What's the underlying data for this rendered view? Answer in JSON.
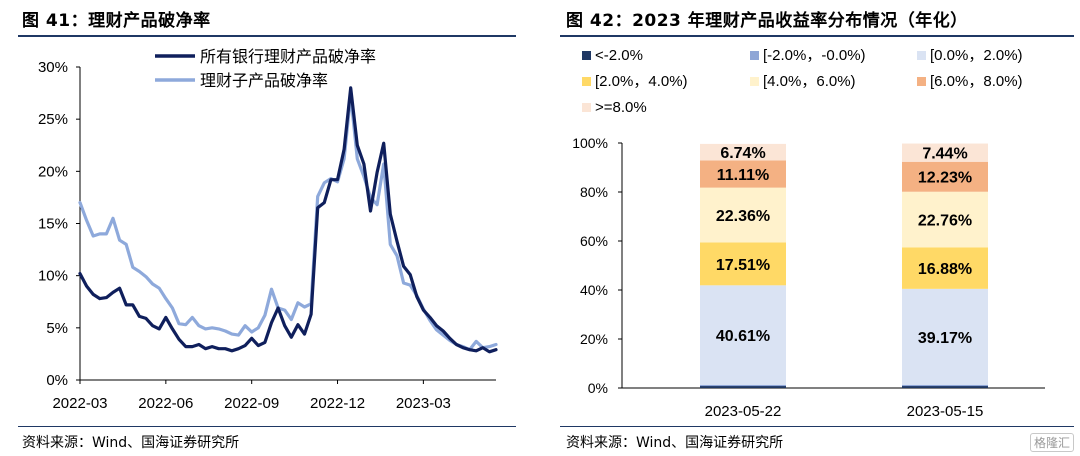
{
  "left_panel": {
    "title": "图 41：理财产品破净率",
    "source": "资料来源：Wind、国海证券研究所"
  },
  "right_panel": {
    "title": "图 42：2023 年理财产品收益率分布情况（年化）",
    "source": "资料来源：Wind、国海证券研究所"
  },
  "watermark": "格隆汇",
  "colors": {
    "dark_navy": "#0f1f5c",
    "light_blue_line": "#8ea9db",
    "neg_gt2": "#1f3864",
    "neg_0_2": "#8fa6d6",
    "b0_2": "#dae3f3",
    "b2_4": "#ffd966",
    "b4_6": "#fff2cc",
    "b6_8": "#f4b183",
    "ge8": "#fbe5d6"
  },
  "chart_data": [
    {
      "type": "line",
      "xlabel": "",
      "ylabel": "",
      "ylim": [
        0,
        30
      ],
      "yticks": [
        "0%",
        "5%",
        "10%",
        "15%",
        "20%",
        "25%",
        "30%"
      ],
      "xticks": [
        "2022-03",
        "2022-06",
        "2022-09",
        "2022-12",
        "2023-03"
      ],
      "grid": false,
      "legend_position": "top-left",
      "series": [
        {
          "name": "所有银行理财产品破净率",
          "color": "#0f1f5c",
          "values": [
            10.2,
            9.0,
            8.2,
            7.8,
            7.9,
            8.4,
            8.8,
            7.2,
            7.2,
            6.1,
            5.9,
            5.2,
            4.9,
            6.0,
            4.9,
            3.9,
            3.2,
            3.2,
            3.4,
            3.0,
            3.2,
            3.0,
            3.0,
            2.8,
            3.0,
            3.3,
            4.0,
            3.3,
            3.6,
            5.5,
            6.9,
            5.2,
            4.1,
            5.3,
            4.4,
            6.3,
            16.5,
            17.0,
            19.2,
            19.2,
            22.1,
            28.0,
            22.5,
            20.7,
            16.2,
            19.9,
            22.7,
            15.9,
            13.3,
            10.9,
            10.1,
            8.0,
            6.7,
            6.0,
            5.2,
            4.7,
            4.0,
            3.4,
            3.1,
            2.9,
            2.8,
            3.1,
            2.7,
            2.9
          ]
        },
        {
          "name": "理财子产品破净率",
          "color": "#8ea9db",
          "values": [
            17.0,
            15.3,
            13.8,
            14.0,
            14.0,
            15.5,
            13.4,
            13.0,
            10.8,
            10.4,
            9.9,
            9.2,
            8.8,
            7.8,
            6.9,
            5.4,
            5.3,
            6.0,
            5.2,
            4.9,
            5.0,
            4.9,
            4.7,
            4.4,
            4.3,
            5.2,
            4.6,
            5.0,
            6.2,
            8.7,
            6.9,
            6.7,
            5.8,
            7.4,
            7.0,
            7.3,
            17.6,
            18.9,
            19.3,
            19.0,
            21.2,
            27.3,
            21.2,
            19.5,
            17.5,
            16.8,
            20.7,
            13.0,
            11.9,
            9.3,
            9.1,
            8.1,
            6.8,
            5.7,
            4.8,
            4.3,
            3.8,
            3.4,
            3.2,
            2.9,
            3.7,
            3.1,
            3.2,
            3.4
          ]
        }
      ]
    },
    {
      "type": "bar",
      "stacked": true,
      "ylim": [
        0,
        100
      ],
      "yticks": [
        "0%",
        "20%",
        "40%",
        "60%",
        "80%",
        "100%"
      ],
      "categories": [
        "2023-05-22",
        "2023-05-15"
      ],
      "grid": false,
      "legend_position": "top",
      "series": [
        {
          "name": "<-2.0%",
          "color": "#1f3864",
          "values": [
            0.8,
            0.8
          ],
          "labels": [
            "",
            ""
          ]
        },
        {
          "name": "[-2.0%，-0.0%)",
          "color": "#8fa6d6",
          "values": [
            0.5,
            0.5
          ],
          "labels": [
            "",
            ""
          ]
        },
        {
          "name": "[0.0%，2.0%)",
          "color": "#dae3f3",
          "values": [
            40.61,
            39.17
          ],
          "labels": [
            "40.61%",
            "39.17%"
          ]
        },
        {
          "name": "[2.0%，4.0%)",
          "color": "#ffd966",
          "values": [
            17.51,
            16.88
          ],
          "labels": [
            "17.51%",
            "16.88%"
          ]
        },
        {
          "name": "[4.0%，6.0%)",
          "color": "#fff2cc",
          "values": [
            22.36,
            22.76
          ],
          "labels": [
            "22.36%",
            "22.76%"
          ]
        },
        {
          "name": "[6.0%，8.0%)",
          "color": "#f4b183",
          "values": [
            11.11,
            12.23
          ],
          "labels": [
            "11.11%",
            "12.23%"
          ]
        },
        {
          "name": ">=8.0%",
          "color": "#fbe5d6",
          "values": [
            6.74,
            7.44
          ],
          "labels": [
            "6.74%",
            "7.44%"
          ]
        }
      ]
    }
  ]
}
